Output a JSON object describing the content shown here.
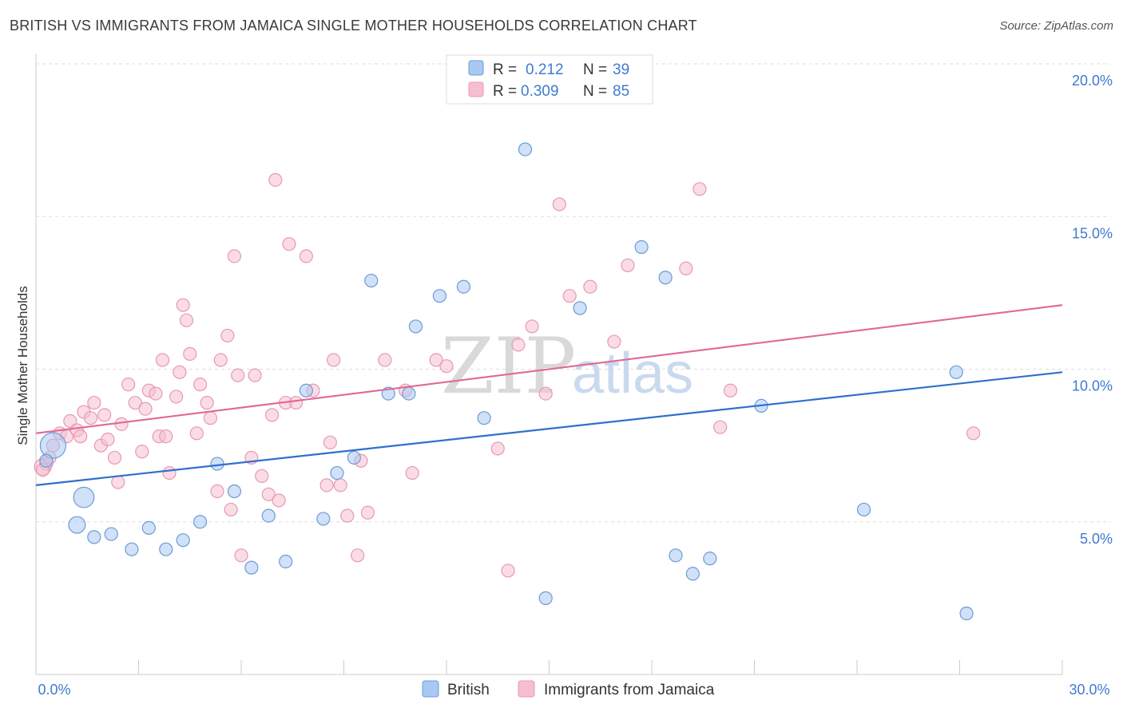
{
  "header": {
    "title": "BRITISH VS IMMIGRANTS FROM JAMAICA SINGLE MOTHER HOUSEHOLDS CORRELATION CHART",
    "source": "Source: ZipAtlas.com"
  },
  "watermark": {
    "zip": "ZIP",
    "atlas": "atlas"
  },
  "legend": {
    "rows": [
      {
        "r_label": "R =",
        "r_value": "0.212",
        "n_label": "N =",
        "n_value": "39"
      },
      {
        "r_label": "R =",
        "r_value": "0.309",
        "n_label": "N =",
        "n_value": "85"
      }
    ]
  },
  "bottom_legend": {
    "british": "British",
    "jamaica": "Immigrants from Jamaica"
  },
  "colors": {
    "british_fill": "#a9c9f2",
    "british_stroke": "#6c9bd8",
    "british_line": "#2f6fcf",
    "jamaica_fill": "#f6bfd0",
    "jamaica_stroke": "#e898b3",
    "jamaica_line": "#e06994",
    "tick": "#3f7ad0",
    "grid": "#dddddd"
  },
  "chart_data": {
    "type": "scatter",
    "title": "BRITISH VS IMMIGRANTS FROM JAMAICA SINGLE MOTHER HOUSEHOLDS CORRELATION CHART",
    "xlabel": "",
    "ylabel": "Single Mother Households",
    "xlim": [
      0,
      30
    ],
    "ylim": [
      0,
      20
    ],
    "x_ticks": [
      "0.0%",
      "30.0%"
    ],
    "y_ticks": [
      {
        "value": 5,
        "label": "5.0%"
      },
      {
        "value": 10,
        "label": "10.0%"
      },
      {
        "value": 15,
        "label": "15.0%"
      },
      {
        "value": 20,
        "label": "20.0%"
      }
    ],
    "grid": true,
    "legend_position": "top-center",
    "series": [
      {
        "name": "British",
        "r": 0.212,
        "n": 39,
        "trend": {
          "x": [
            0,
            30
          ],
          "y": [
            6.2,
            9.9
          ]
        },
        "points": [
          {
            "x": 0.5,
            "y": 7.5,
            "s": 2
          },
          {
            "x": 1.4,
            "y": 5.8,
            "s": 1.6
          },
          {
            "x": 1.2,
            "y": 4.9,
            "s": 1.3
          },
          {
            "x": 1.7,
            "y": 4.5,
            "s": 1
          },
          {
            "x": 2.2,
            "y": 4.6,
            "s": 1
          },
          {
            "x": 2.8,
            "y": 4.1,
            "s": 1
          },
          {
            "x": 3.3,
            "y": 4.8,
            "s": 1
          },
          {
            "x": 3.8,
            "y": 4.1,
            "s": 1
          },
          {
            "x": 4.3,
            "y": 4.4,
            "s": 1
          },
          {
            "x": 4.8,
            "y": 5.0,
            "s": 1
          },
          {
            "x": 5.3,
            "y": 6.9,
            "s": 1
          },
          {
            "x": 5.8,
            "y": 6.0,
            "s": 1
          },
          {
            "x": 6.3,
            "y": 3.5,
            "s": 1
          },
          {
            "x": 6.8,
            "y": 5.2,
            "s": 1
          },
          {
            "x": 7.3,
            "y": 3.7,
            "s": 1
          },
          {
            "x": 7.9,
            "y": 9.3,
            "s": 1
          },
          {
            "x": 8.4,
            "y": 5.1,
            "s": 1
          },
          {
            "x": 8.8,
            "y": 6.6,
            "s": 1
          },
          {
            "x": 9.3,
            "y": 7.1,
            "s": 1
          },
          {
            "x": 9.8,
            "y": 12.9,
            "s": 1
          },
          {
            "x": 10.3,
            "y": 9.2,
            "s": 1
          },
          {
            "x": 10.9,
            "y": 9.2,
            "s": 1
          },
          {
            "x": 11.1,
            "y": 11.4,
            "s": 1
          },
          {
            "x": 11.8,
            "y": 12.4,
            "s": 1
          },
          {
            "x": 12.5,
            "y": 12.7,
            "s": 1
          },
          {
            "x": 13.1,
            "y": 8.4,
            "s": 1
          },
          {
            "x": 14.3,
            "y": 17.2,
            "s": 1
          },
          {
            "x": 14.9,
            "y": 2.5,
            "s": 1
          },
          {
            "x": 15.9,
            "y": 12.0,
            "s": 1
          },
          {
            "x": 17.7,
            "y": 14.0,
            "s": 1
          },
          {
            "x": 18.4,
            "y": 13.0,
            "s": 1
          },
          {
            "x": 18.7,
            "y": 3.9,
            "s": 1
          },
          {
            "x": 19.2,
            "y": 3.3,
            "s": 1
          },
          {
            "x": 19.7,
            "y": 3.8,
            "s": 1
          },
          {
            "x": 21.2,
            "y": 8.8,
            "s": 1
          },
          {
            "x": 24.2,
            "y": 5.4,
            "s": 1
          },
          {
            "x": 26.9,
            "y": 9.9,
            "s": 1
          },
          {
            "x": 27.2,
            "y": 2.0,
            "s": 1
          },
          {
            "x": 0.3,
            "y": 7.0,
            "s": 1
          }
        ]
      },
      {
        "name": "Immigrants from Jamaica",
        "r": 0.309,
        "n": 85,
        "trend": {
          "x": [
            0,
            30
          ],
          "y": [
            7.9,
            12.1
          ]
        },
        "points": [
          {
            "x": 0.2,
            "y": 6.8,
            "s": 1.3
          },
          {
            "x": 0.3,
            "y": 6.9,
            "s": 1
          },
          {
            "x": 0.4,
            "y": 7.1,
            "s": 1
          },
          {
            "x": 0.5,
            "y": 7.5,
            "s": 1
          },
          {
            "x": 0.7,
            "y": 7.9,
            "s": 1
          },
          {
            "x": 0.9,
            "y": 7.8,
            "s": 1
          },
          {
            "x": 1.0,
            "y": 8.3,
            "s": 1
          },
          {
            "x": 1.2,
            "y": 8.0,
            "s": 1
          },
          {
            "x": 1.3,
            "y": 7.8,
            "s": 1
          },
          {
            "x": 1.4,
            "y": 8.6,
            "s": 1
          },
          {
            "x": 1.6,
            "y": 8.4,
            "s": 1
          },
          {
            "x": 1.7,
            "y": 8.9,
            "s": 1
          },
          {
            "x": 1.9,
            "y": 7.5,
            "s": 1
          },
          {
            "x": 2.0,
            "y": 8.5,
            "s": 1
          },
          {
            "x": 2.1,
            "y": 7.7,
            "s": 1
          },
          {
            "x": 2.3,
            "y": 7.1,
            "s": 1
          },
          {
            "x": 2.4,
            "y": 6.3,
            "s": 1
          },
          {
            "x": 2.5,
            "y": 8.2,
            "s": 1
          },
          {
            "x": 2.7,
            "y": 9.5,
            "s": 1
          },
          {
            "x": 2.9,
            "y": 8.9,
            "s": 1
          },
          {
            "x": 3.1,
            "y": 7.3,
            "s": 1
          },
          {
            "x": 3.2,
            "y": 8.7,
            "s": 1
          },
          {
            "x": 3.3,
            "y": 9.3,
            "s": 1
          },
          {
            "x": 3.5,
            "y": 9.2,
            "s": 1
          },
          {
            "x": 3.6,
            "y": 7.8,
            "s": 1
          },
          {
            "x": 3.7,
            "y": 10.3,
            "s": 1
          },
          {
            "x": 3.8,
            "y": 7.8,
            "s": 1
          },
          {
            "x": 3.9,
            "y": 6.6,
            "s": 1
          },
          {
            "x": 4.1,
            "y": 9.1,
            "s": 1
          },
          {
            "x": 4.2,
            "y": 9.9,
            "s": 1
          },
          {
            "x": 4.3,
            "y": 12.1,
            "s": 1
          },
          {
            "x": 4.4,
            "y": 11.6,
            "s": 1
          },
          {
            "x": 4.5,
            "y": 10.5,
            "s": 1
          },
          {
            "x": 4.7,
            "y": 7.9,
            "s": 1
          },
          {
            "x": 4.8,
            "y": 9.5,
            "s": 1
          },
          {
            "x": 5.0,
            "y": 8.9,
            "s": 1
          },
          {
            "x": 5.1,
            "y": 8.4,
            "s": 1
          },
          {
            "x": 5.3,
            "y": 6.0,
            "s": 1
          },
          {
            "x": 5.4,
            "y": 10.3,
            "s": 1
          },
          {
            "x": 5.6,
            "y": 11.1,
            "s": 1
          },
          {
            "x": 5.7,
            "y": 5.4,
            "s": 1
          },
          {
            "x": 5.8,
            "y": 13.7,
            "s": 1
          },
          {
            "x": 5.9,
            "y": 9.8,
            "s": 1
          },
          {
            "x": 6.0,
            "y": 3.9,
            "s": 1
          },
          {
            "x": 6.3,
            "y": 7.1,
            "s": 1
          },
          {
            "x": 6.4,
            "y": 9.8,
            "s": 1
          },
          {
            "x": 6.6,
            "y": 6.5,
            "s": 1
          },
          {
            "x": 6.8,
            "y": 5.9,
            "s": 1
          },
          {
            "x": 6.9,
            "y": 8.5,
            "s": 1
          },
          {
            "x": 7.0,
            "y": 16.2,
            "s": 1
          },
          {
            "x": 7.1,
            "y": 5.7,
            "s": 1
          },
          {
            "x": 7.3,
            "y": 8.9,
            "s": 1
          },
          {
            "x": 7.4,
            "y": 14.1,
            "s": 1
          },
          {
            "x": 7.6,
            "y": 8.9,
            "s": 1
          },
          {
            "x": 7.9,
            "y": 13.7,
            "s": 1
          },
          {
            "x": 8.1,
            "y": 9.3,
            "s": 1
          },
          {
            "x": 8.5,
            "y": 6.2,
            "s": 1
          },
          {
            "x": 8.6,
            "y": 7.6,
            "s": 1
          },
          {
            "x": 8.7,
            "y": 10.3,
            "s": 1
          },
          {
            "x": 8.9,
            "y": 6.2,
            "s": 1
          },
          {
            "x": 9.1,
            "y": 5.2,
            "s": 1
          },
          {
            "x": 9.4,
            "y": 3.9,
            "s": 1
          },
          {
            "x": 9.5,
            "y": 7.0,
            "s": 1
          },
          {
            "x": 9.7,
            "y": 5.3,
            "s": 1
          },
          {
            "x": 10.2,
            "y": 10.3,
            "s": 1
          },
          {
            "x": 10.8,
            "y": 9.3,
            "s": 1
          },
          {
            "x": 11.0,
            "y": 6.6,
            "s": 1
          },
          {
            "x": 11.7,
            "y": 10.3,
            "s": 1
          },
          {
            "x": 12.0,
            "y": 10.1,
            "s": 1
          },
          {
            "x": 13.5,
            "y": 7.4,
            "s": 1
          },
          {
            "x": 13.8,
            "y": 3.4,
            "s": 1
          },
          {
            "x": 14.1,
            "y": 10.8,
            "s": 1
          },
          {
            "x": 14.5,
            "y": 11.4,
            "s": 1
          },
          {
            "x": 14.9,
            "y": 9.2,
            "s": 1
          },
          {
            "x": 15.3,
            "y": 15.4,
            "s": 1
          },
          {
            "x": 15.6,
            "y": 12.4,
            "s": 1
          },
          {
            "x": 16.2,
            "y": 12.7,
            "s": 1
          },
          {
            "x": 16.9,
            "y": 10.9,
            "s": 1
          },
          {
            "x": 17.3,
            "y": 13.4,
            "s": 1
          },
          {
            "x": 19.0,
            "y": 13.3,
            "s": 1
          },
          {
            "x": 19.4,
            "y": 15.9,
            "s": 1
          },
          {
            "x": 20.0,
            "y": 8.1,
            "s": 1
          },
          {
            "x": 20.3,
            "y": 9.3,
            "s": 1
          },
          {
            "x": 27.4,
            "y": 7.9,
            "s": 1
          },
          {
            "x": 0.2,
            "y": 6.7,
            "s": 1
          }
        ]
      }
    ]
  }
}
